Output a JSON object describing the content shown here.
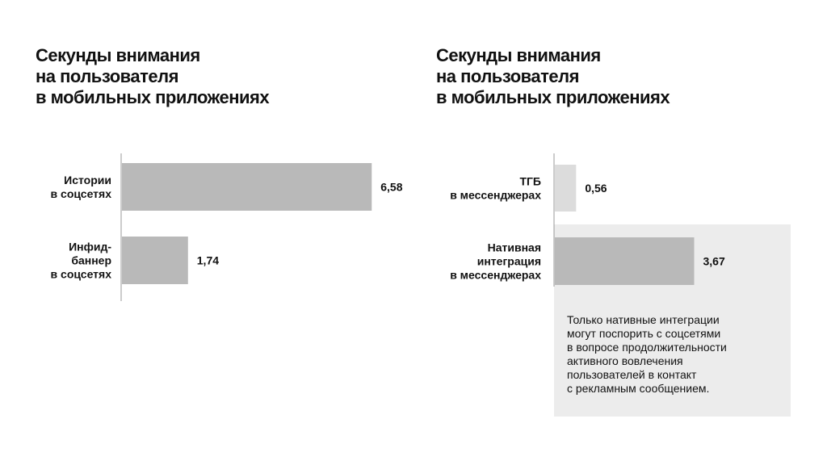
{
  "chart_data": [
    {
      "type": "bar",
      "orientation": "horizontal",
      "title": [
        "Секунды внимания",
        "на пользователя",
        "в мобильных приложениях"
      ],
      "categories": [
        [
          "Истории",
          "в соцсетях"
        ],
        [
          "Инфид-",
          "баннер",
          "в соцсетях"
        ]
      ],
      "values": [
        6.58,
        1.74
      ],
      "value_labels": [
        "6,58",
        "1,74"
      ],
      "colors": [
        "#b9b9b9",
        "#b9b9b9"
      ]
    },
    {
      "type": "bar",
      "orientation": "horizontal",
      "title": [
        "Секунды внимания",
        "на пользователя",
        "в мобильных приложениях"
      ],
      "categories": [
        [
          "ТГБ",
          "в мессенджерах"
        ],
        [
          "Нативная",
          "интеграция",
          "в мессенджерах"
        ]
      ],
      "values": [
        0.56,
        3.67
      ],
      "value_labels": [
        "0,56",
        "3,67"
      ],
      "colors": [
        "#dcdcdc",
        "#b9b9b9"
      ],
      "annotation": [
        "Только нативные интеграции",
        "могут поспорить с соцсетями",
        "в вопросе продолжительности",
        "активного вовлечения",
        "пользователей в контакт",
        "с рекламным сообщением."
      ]
    }
  ]
}
